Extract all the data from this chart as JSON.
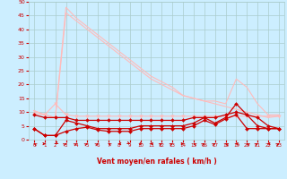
{
  "bg_color": "#cceeff",
  "grid_color": "#aacccc",
  "xlabel": "Vent moyen/en rafales ( km/h )",
  "xlim": [
    -0.5,
    23.5
  ],
  "ylim": [
    0,
    50
  ],
  "yticks": [
    0,
    5,
    10,
    15,
    20,
    25,
    30,
    35,
    40,
    45,
    50
  ],
  "xticks": [
    0,
    1,
    2,
    3,
    4,
    5,
    6,
    7,
    8,
    9,
    10,
    11,
    12,
    13,
    14,
    15,
    16,
    17,
    18,
    19,
    20,
    21,
    22,
    23
  ],
  "lines": [
    {
      "x": [
        0,
        1,
        2,
        3,
        4,
        5,
        6,
        7,
        8,
        9,
        10,
        11,
        12,
        13,
        14,
        15,
        16,
        17,
        18,
        19,
        20,
        21,
        22,
        23
      ],
      "y": [
        10.5,
        9,
        8,
        46,
        43,
        40,
        37,
        34,
        31,
        28,
        25,
        22,
        20,
        18,
        16,
        15,
        14,
        13,
        12,
        11,
        10,
        9,
        8,
        8.5
      ],
      "color": "#ffbbbb",
      "lw": 0.8,
      "marker": null
    },
    {
      "x": [
        0,
        1,
        2,
        3,
        4,
        5,
        6,
        7,
        8,
        9,
        10,
        11,
        12,
        13,
        14,
        15,
        16,
        17,
        18,
        19,
        20,
        21,
        22,
        23
      ],
      "y": [
        10.5,
        9,
        8,
        48,
        44,
        41,
        38,
        35,
        32,
        29,
        26,
        23,
        21,
        19,
        16,
        15,
        14,
        14,
        13,
        22,
        19,
        13,
        9,
        9
      ],
      "color": "#ffbbbb",
      "lw": 0.8,
      "marker": null
    },
    {
      "x": [
        0,
        1,
        2,
        3,
        4,
        5,
        6,
        7,
        8,
        9,
        10,
        11,
        12,
        13,
        14,
        15,
        16,
        17,
        18,
        19,
        20,
        21,
        22,
        23
      ],
      "y": [
        9.5,
        9,
        13,
        9,
        8.5,
        8.5,
        8.5,
        8.5,
        8.5,
        8.5,
        8.5,
        8.5,
        8.5,
        8.5,
        8.5,
        8.5,
        8.5,
        8.5,
        8.5,
        8.5,
        8.5,
        8.5,
        8.5,
        8.5
      ],
      "color": "#ffbbbb",
      "lw": 0.8,
      "marker": "v",
      "ms": 2.5
    },
    {
      "x": [
        0,
        1,
        2,
        3,
        4,
        5,
        6,
        7,
        8,
        9,
        10,
        11,
        12,
        13,
        14,
        15,
        16,
        17,
        18,
        19,
        20,
        21,
        22,
        23
      ],
      "y": [
        4,
        1.5,
        1.5,
        3,
        4,
        4.5,
        3.5,
        3,
        3,
        3,
        4,
        4,
        4,
        4,
        4,
        5,
        7,
        5.5,
        7.5,
        9,
        4,
        4,
        4,
        4
      ],
      "color": "#cc0000",
      "lw": 0.9,
      "marker": "D",
      "ms": 2.0
    },
    {
      "x": [
        0,
        1,
        2,
        3,
        4,
        5,
        6,
        7,
        8,
        9,
        10,
        11,
        12,
        13,
        14,
        15,
        16,
        17,
        18,
        19,
        20,
        21,
        22,
        23
      ],
      "y": [
        4,
        1.5,
        1.5,
        7,
        6,
        5,
        4,
        4,
        4,
        4,
        5,
        5,
        5,
        5,
        5,
        6,
        8,
        6,
        8,
        13,
        9,
        5,
        4,
        4
      ],
      "color": "#cc0000",
      "lw": 0.9,
      "marker": "D",
      "ms": 2.0
    },
    {
      "x": [
        0,
        1,
        2,
        3,
        4,
        5,
        6,
        7,
        8,
        9,
        10,
        11,
        12,
        13,
        14,
        15,
        16,
        17,
        18,
        19,
        20,
        21,
        22,
        23
      ],
      "y": [
        9,
        8,
        8,
        8,
        7,
        7,
        7,
        7,
        7,
        7,
        7,
        7,
        7,
        7,
        7,
        8,
        8,
        8,
        9,
        10,
        9,
        8,
        5,
        4
      ],
      "color": "#cc0000",
      "lw": 0.9,
      "marker": "D",
      "ms": 2.0
    }
  ],
  "arrows": {
    "x": [
      0,
      1,
      2,
      3,
      4,
      5,
      6,
      7,
      8,
      9,
      10,
      11,
      12,
      13,
      14,
      15,
      16,
      17,
      18,
      19,
      20,
      21,
      22,
      23
    ],
    "angles": [
      315,
      90,
      225,
      45,
      45,
      45,
      45,
      315,
      270,
      135,
      200,
      270,
      45,
      45,
      90,
      315,
      45,
      45,
      315,
      270,
      315,
      45,
      270,
      45
    ]
  }
}
